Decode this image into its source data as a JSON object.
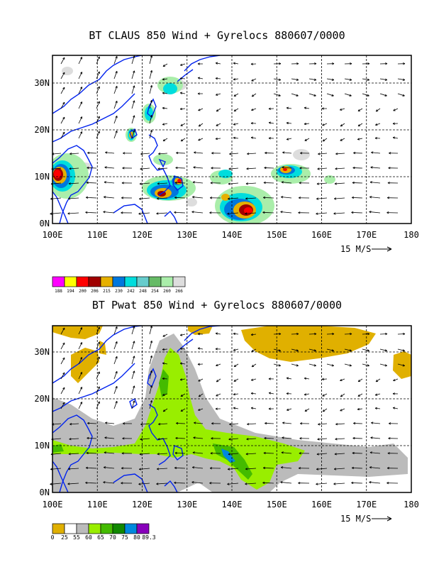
{
  "panels": [
    {
      "id": "top",
      "title": "BT CLAUS 850 Wind + Gyrelocs 880607/0000",
      "lon_ticks": [
        "100E",
        "110E",
        "120E",
        "130E",
        "140E",
        "150E",
        "160E",
        "170E",
        "180"
      ],
      "lat_ticks": [
        "0N",
        "10N",
        "20N",
        "30N"
      ],
      "vector_scale_label": "15 M/S",
      "colorbar": {
        "colors": [
          "#ff00ff",
          "#ffff00",
          "#ff0000",
          "#a00000",
          "#e6b000",
          "#0077dd",
          "#00dddd",
          "#66cccc",
          "#66bb66",
          "#aaeeaa",
          "#dddddd"
        ],
        "labels": [
          "188",
          "194",
          "200",
          "206",
          "215",
          "230",
          "242",
          "248",
          "254",
          "260",
          "266"
        ]
      }
    },
    {
      "id": "bottom",
      "title": "BT Pwat 850 Wind + Gyrelocs 880607/0000",
      "lon_ticks": [
        "100E",
        "110E",
        "120E",
        "130E",
        "140E",
        "150E",
        "160E",
        "170E",
        "180"
      ],
      "lat_ticks": [
        "0N",
        "10N",
        "20N",
        "30N"
      ],
      "vector_scale_label": "15 M/S",
      "colorbar": {
        "colors": [
          "#e0b000",
          "#ffffff",
          "#bbbbbb",
          "#99ee00",
          "#44bb00",
          "#118800",
          "#0088dd",
          "#8800bb"
        ],
        "labels": [
          "0",
          "25",
          "55",
          "60",
          "65",
          "70",
          "75",
          "80",
          "89.3"
        ]
      }
    }
  ]
}
